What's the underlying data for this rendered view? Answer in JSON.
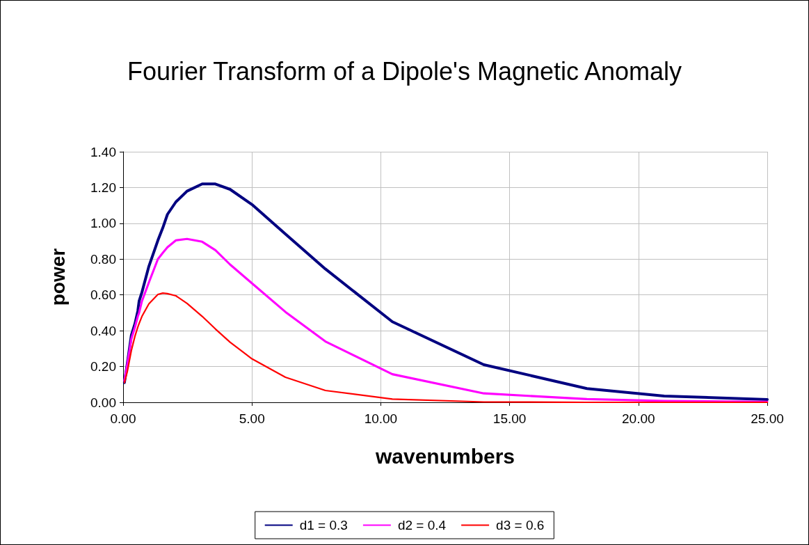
{
  "chart_data": {
    "type": "line",
    "title": "Fourier Transform of a Dipole's Magnetic Anomaly",
    "xlabel": "wavenumbers",
    "ylabel": "power",
    "x": [
      0.05,
      0.16,
      0.32,
      0.46,
      0.57,
      0.62,
      0.73,
      1.0,
      1.35,
      1.54,
      1.72,
      2.05,
      2.48,
      3.07,
      3.58,
      4.15,
      5.0,
      6.3,
      7.85,
      10.45,
      14.0,
      18.0,
      21.0,
      25.0
    ],
    "series": [
      {
        "name": "d1 = 0.3",
        "color": "#000080",
        "values": [
          0.11,
          0.215,
          0.375,
          0.44,
          0.51,
          0.565,
          0.615,
          0.76,
          0.905,
          0.975,
          1.05,
          1.12,
          1.18,
          1.22,
          1.22,
          1.19,
          1.105,
          0.94,
          0.745,
          0.45,
          0.21,
          0.077,
          0.035,
          0.016
        ]
      },
      {
        "name": "d2 = 0.4",
        "color": "#ff00ff",
        "values": [
          0.12,
          0.21,
          0.355,
          0.42,
          0.48,
          0.5,
          0.565,
          0.67,
          0.8,
          0.835,
          0.866,
          0.905,
          0.913,
          0.897,
          0.85,
          0.77,
          0.665,
          0.505,
          0.34,
          0.157,
          0.05,
          0.018,
          0.008,
          0.003
        ]
      },
      {
        "name": "d3 = 0.6",
        "color": "#ff0000",
        "values": [
          0.11,
          0.17,
          0.29,
          0.37,
          0.42,
          0.44,
          0.48,
          0.55,
          0.603,
          0.61,
          0.607,
          0.595,
          0.553,
          0.48,
          0.41,
          0.336,
          0.243,
          0.14,
          0.066,
          0.018,
          0.002,
          0.0,
          0.0,
          0.0
        ]
      }
    ],
    "xlim": [
      0,
      25
    ],
    "xticks": [
      {
        "value": 0,
        "label": "0.00"
      },
      {
        "value": 5,
        "label": "5.00"
      },
      {
        "value": 10,
        "label": "10.00"
      },
      {
        "value": 15,
        "label": "15.00"
      },
      {
        "value": 20,
        "label": "20.00"
      },
      {
        "value": 25,
        "label": "25.00"
      }
    ],
    "ylim": [
      0,
      1.4
    ],
    "yticks": [
      {
        "value": 0,
        "label": "0.00"
      },
      {
        "value": 0.2,
        "label": "0.20"
      },
      {
        "value": 0.4,
        "label": "0.40"
      },
      {
        "value": 0.6,
        "label": "0.60"
      },
      {
        "value": 0.8,
        "label": "0.80"
      },
      {
        "value": 1.0,
        "label": "1.00"
      },
      {
        "value": 1.2,
        "label": "1.20"
      },
      {
        "value": 1.4,
        "label": "1.40"
      }
    ],
    "grid": true,
    "legend": "bottom",
    "marker": "none",
    "line_style": "solid"
  }
}
